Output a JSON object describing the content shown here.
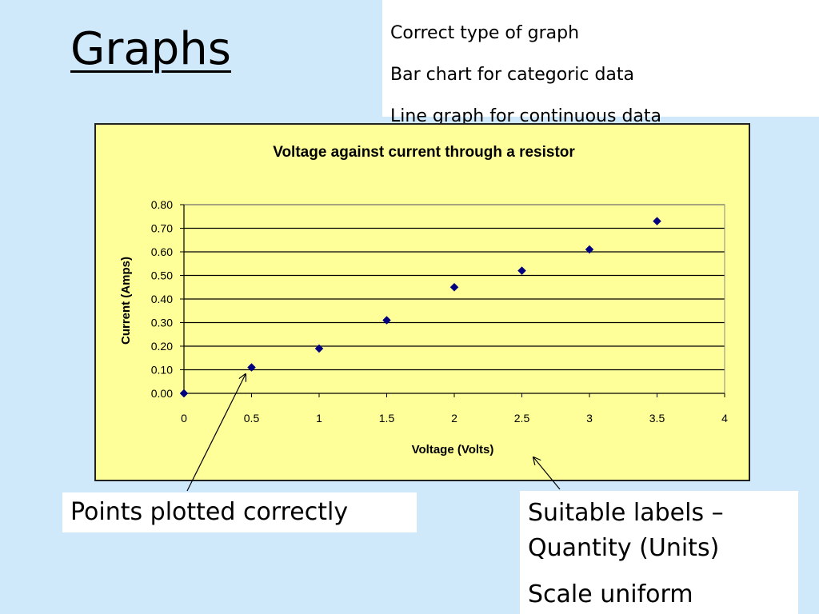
{
  "slide": {
    "title": "Graphs"
  },
  "criteria": [
    "Correct type of graph",
    "Bar chart for categoric data",
    "Line graph for continuous data"
  ],
  "callouts": {
    "points": "Points plotted correctly",
    "labels_line1": "Suitable labels –",
    "labels_line2": "Quantity (Units)",
    "scale": "Scale uniform"
  },
  "colors": {
    "background": "#cfe9fb",
    "plot_area": "#ffff99",
    "marker": "#000080"
  },
  "chart_data": {
    "type": "scatter",
    "title": "Voltage against current through a resistor",
    "xlabel": "Voltage (Volts)",
    "ylabel": "Current (Amps)",
    "x": [
      0,
      0.5,
      1,
      1.5,
      2,
      2.5,
      3,
      3.5
    ],
    "y": [
      0.0,
      0.11,
      0.19,
      0.31,
      0.45,
      0.52,
      0.61,
      0.73
    ],
    "xlim": [
      0,
      4
    ],
    "ylim": [
      0,
      0.8
    ],
    "xticks": [
      "0",
      "0.5",
      "1",
      "1.5",
      "2",
      "2.5",
      "3",
      "3.5",
      "4"
    ],
    "yticks": [
      "0.00",
      "0.10",
      "0.20",
      "0.30",
      "0.40",
      "0.50",
      "0.60",
      "0.70",
      "0.80"
    ],
    "grid": "horizontal",
    "legend": "none",
    "marker": "diamond"
  }
}
